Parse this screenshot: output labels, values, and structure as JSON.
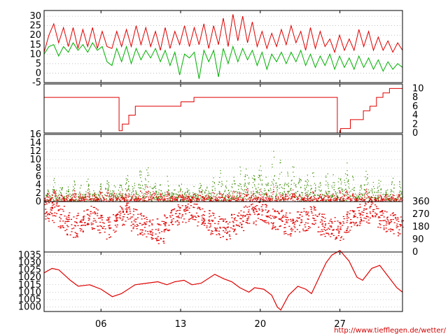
{
  "credit": "http://www.tiefflegen.de/wetter/",
  "colors": {
    "red": "#e00000",
    "green": "#00b000",
    "darkgreen": "#3a8a00",
    "grid": "#999999",
    "axis": "#000000"
  },
  "chart_data": [
    {
      "type": "line",
      "title": "",
      "ylim": [
        -5,
        33
      ],
      "y_ticks": [
        "30",
        "25",
        "20",
        "15",
        "10",
        "5",
        "0",
        "-5"
      ],
      "y_tick_values": [
        30,
        25,
        20,
        15,
        10,
        5,
        0,
        -5
      ],
      "series": [
        {
          "color": "#e00000",
          "values": [
            11,
            20,
            26,
            16,
            24,
            14,
            24,
            13,
            23,
            14,
            24,
            13,
            22,
            14,
            13,
            22,
            14,
            23,
            14,
            25,
            15,
            24,
            14,
            22,
            12,
            24,
            13,
            22,
            15,
            25,
            14,
            24,
            15,
            26,
            13,
            25,
            15,
            29,
            14,
            31,
            17,
            30,
            16,
            27,
            14,
            22,
            13,
            21,
            14,
            23,
            15,
            25,
            16,
            22,
            12,
            24,
            13,
            22,
            14,
            18,
            11,
            20,
            12,
            18,
            12,
            23,
            14,
            22,
            12,
            19,
            12,
            17,
            11,
            16,
            12
          ]
        },
        {
          "color": "#00b000",
          "values": [
            10,
            14,
            15,
            9,
            14,
            11,
            16,
            12,
            15,
            11,
            16,
            12,
            14,
            6,
            4,
            13,
            6,
            14,
            5,
            13,
            7,
            12,
            8,
            13,
            6,
            12,
            4,
            11,
            -1,
            10,
            8,
            11,
            -3,
            12,
            6,
            12,
            -2,
            13,
            5,
            14,
            6,
            13,
            7,
            12,
            4,
            11,
            2,
            10,
            6,
            11,
            5,
            11,
            6,
            12,
            4,
            10,
            3,
            9,
            4,
            10,
            2,
            9,
            3,
            8,
            2,
            9,
            3,
            8,
            2,
            7,
            1,
            6,
            2,
            5,
            3
          ]
        }
      ]
    },
    {
      "type": "line",
      "title": "",
      "ylim": [
        0,
        11
      ],
      "y_ticks": [
        "10",
        "8",
        "6",
        "4",
        "2",
        "0"
      ],
      "y_tick_values": [
        10,
        8,
        6,
        4,
        2,
        0
      ],
      "series": [
        {
          "color": "#e00000",
          "points": [
            [
              0,
              8
            ],
            [
              10,
              8
            ],
            [
              11.5,
              0.5
            ],
            [
              12,
              2
            ],
            [
              13,
              4
            ],
            [
              14,
              6
            ],
            [
              20,
              6
            ],
            [
              21,
              7
            ],
            [
              23,
              8
            ],
            [
              24.5,
              8
            ],
            [
              45,
              0
            ],
            [
              45.5,
              1
            ],
            [
              47,
              3
            ],
            [
              49,
              5
            ],
            [
              50,
              6
            ],
            [
              51,
              8
            ],
            [
              52,
              9
            ],
            [
              53,
              10
            ],
            [
              55,
              10.5
            ]
          ]
        }
      ]
    },
    {
      "type": "scatter",
      "title": "",
      "ylim": [
        0,
        16
      ],
      "y_ticks": [
        "16",
        "14",
        "12",
        "10",
        "8",
        "6",
        "4",
        "2",
        "0"
      ],
      "y_tick_values": [
        16,
        14,
        12,
        10,
        8,
        6,
        4,
        2,
        0
      ],
      "series": [
        {
          "color": "#3a8a00",
          "peaks": [
            3,
            6,
            5,
            4,
            5,
            4,
            6,
            3,
            5,
            7,
            5,
            6,
            8,
            6,
            9,
            11,
            7,
            5,
            6,
            4,
            6,
            5,
            4,
            6,
            5,
            7,
            9,
            6,
            8,
            9,
            11,
            8,
            10,
            7,
            13,
            11,
            9,
            10,
            7,
            8,
            9,
            6,
            10,
            7,
            8,
            11,
            7,
            6,
            9,
            5,
            7,
            4,
            6,
            5
          ]
        },
        {
          "color": "#e00000",
          "peaks": [
            2,
            3,
            2,
            2,
            3,
            2,
            3,
            2,
            3,
            3,
            2,
            3,
            3,
            2,
            3,
            4,
            3,
            2,
            3,
            2,
            3,
            2,
            2,
            3,
            2,
            3,
            3,
            2,
            3,
            3,
            4,
            3,
            3,
            2,
            4,
            3,
            3,
            3,
            2,
            3,
            3,
            2,
            3,
            2,
            3,
            3,
            2,
            2,
            3,
            2,
            2,
            2,
            2,
            2
          ]
        }
      ]
    },
    {
      "type": "scatter",
      "title": "",
      "ylim": [
        0,
        360
      ],
      "y_ticks": [
        "360",
        "270",
        "180",
        "90",
        "0"
      ],
      "y_tick_values": [
        360,
        270,
        180,
        90,
        0
      ],
      "series": [
        {
          "color": "#e00000",
          "typical_directions": [
            300,
            280,
            250,
            200,
            180,
            220,
            260,
            240,
            190,
            170,
            210,
            250,
            270,
            230,
            200,
            180,
            160,
            140,
            200,
            240,
            260,
            280,
            300,
            260,
            220,
            200,
            180,
            160,
            200,
            230,
            250,
            270,
            290,
            260,
            240,
            220,
            200,
            180,
            210,
            230,
            250,
            200,
            190,
            170,
            150,
            210,
            240,
            260,
            280,
            300,
            250,
            220,
            200,
            180
          ]
        }
      ]
    },
    {
      "type": "line",
      "title": "",
      "ylim": [
        997,
        1037
      ],
      "y_ticks": [
        "1035",
        "1030",
        "1025",
        "1020",
        "1015",
        "1010",
        "1005",
        "1000"
      ],
      "y_tick_values": [
        1035,
        1030,
        1025,
        1020,
        1015,
        1010,
        1005,
        1000
      ],
      "x_ticks": [
        "06",
        "13",
        "20",
        "27"
      ],
      "x_tick_values": [
        6,
        13,
        20,
        27
      ],
      "series": [
        {
          "color": "#e00000",
          "points": [
            [
              1,
              1023
            ],
            [
              1.7,
              1026
            ],
            [
              2.3,
              1025
            ],
            [
              3.3,
              1018
            ],
            [
              4,
              1014
            ],
            [
              5,
              1015
            ],
            [
              6,
              1012
            ],
            [
              7,
              1007
            ],
            [
              7.8,
              1009
            ],
            [
              9,
              1015
            ],
            [
              10,
              1016
            ],
            [
              11,
              1017
            ],
            [
              11.8,
              1015
            ],
            [
              12.5,
              1017
            ],
            [
              13.3,
              1018
            ],
            [
              14,
              1015
            ],
            [
              14.8,
              1016
            ],
            [
              16,
              1022
            ],
            [
              16.8,
              1019
            ],
            [
              17.5,
              1017
            ],
            [
              18.2,
              1013
            ],
            [
              19,
              1010
            ],
            [
              19.5,
              1013
            ],
            [
              20.3,
              1012
            ],
            [
              21,
              1008
            ],
            [
              21.5,
              1000
            ],
            [
              21.8,
              998
            ],
            [
              22.5,
              1008
            ],
            [
              23.3,
              1014
            ],
            [
              24,
              1012
            ],
            [
              24.5,
              1009
            ],
            [
              25.3,
              1022
            ],
            [
              25.8,
              1030
            ],
            [
              26.3,
              1035
            ],
            [
              27,
              1038
            ],
            [
              27.8,
              1031
            ],
            [
              28.5,
              1020
            ],
            [
              29,
              1018
            ],
            [
              29.8,
              1026
            ],
            [
              30.5,
              1028
            ],
            [
              31.3,
              1020
            ],
            [
              32,
              1013
            ],
            [
              32.5,
              1010
            ]
          ]
        }
      ]
    }
  ]
}
